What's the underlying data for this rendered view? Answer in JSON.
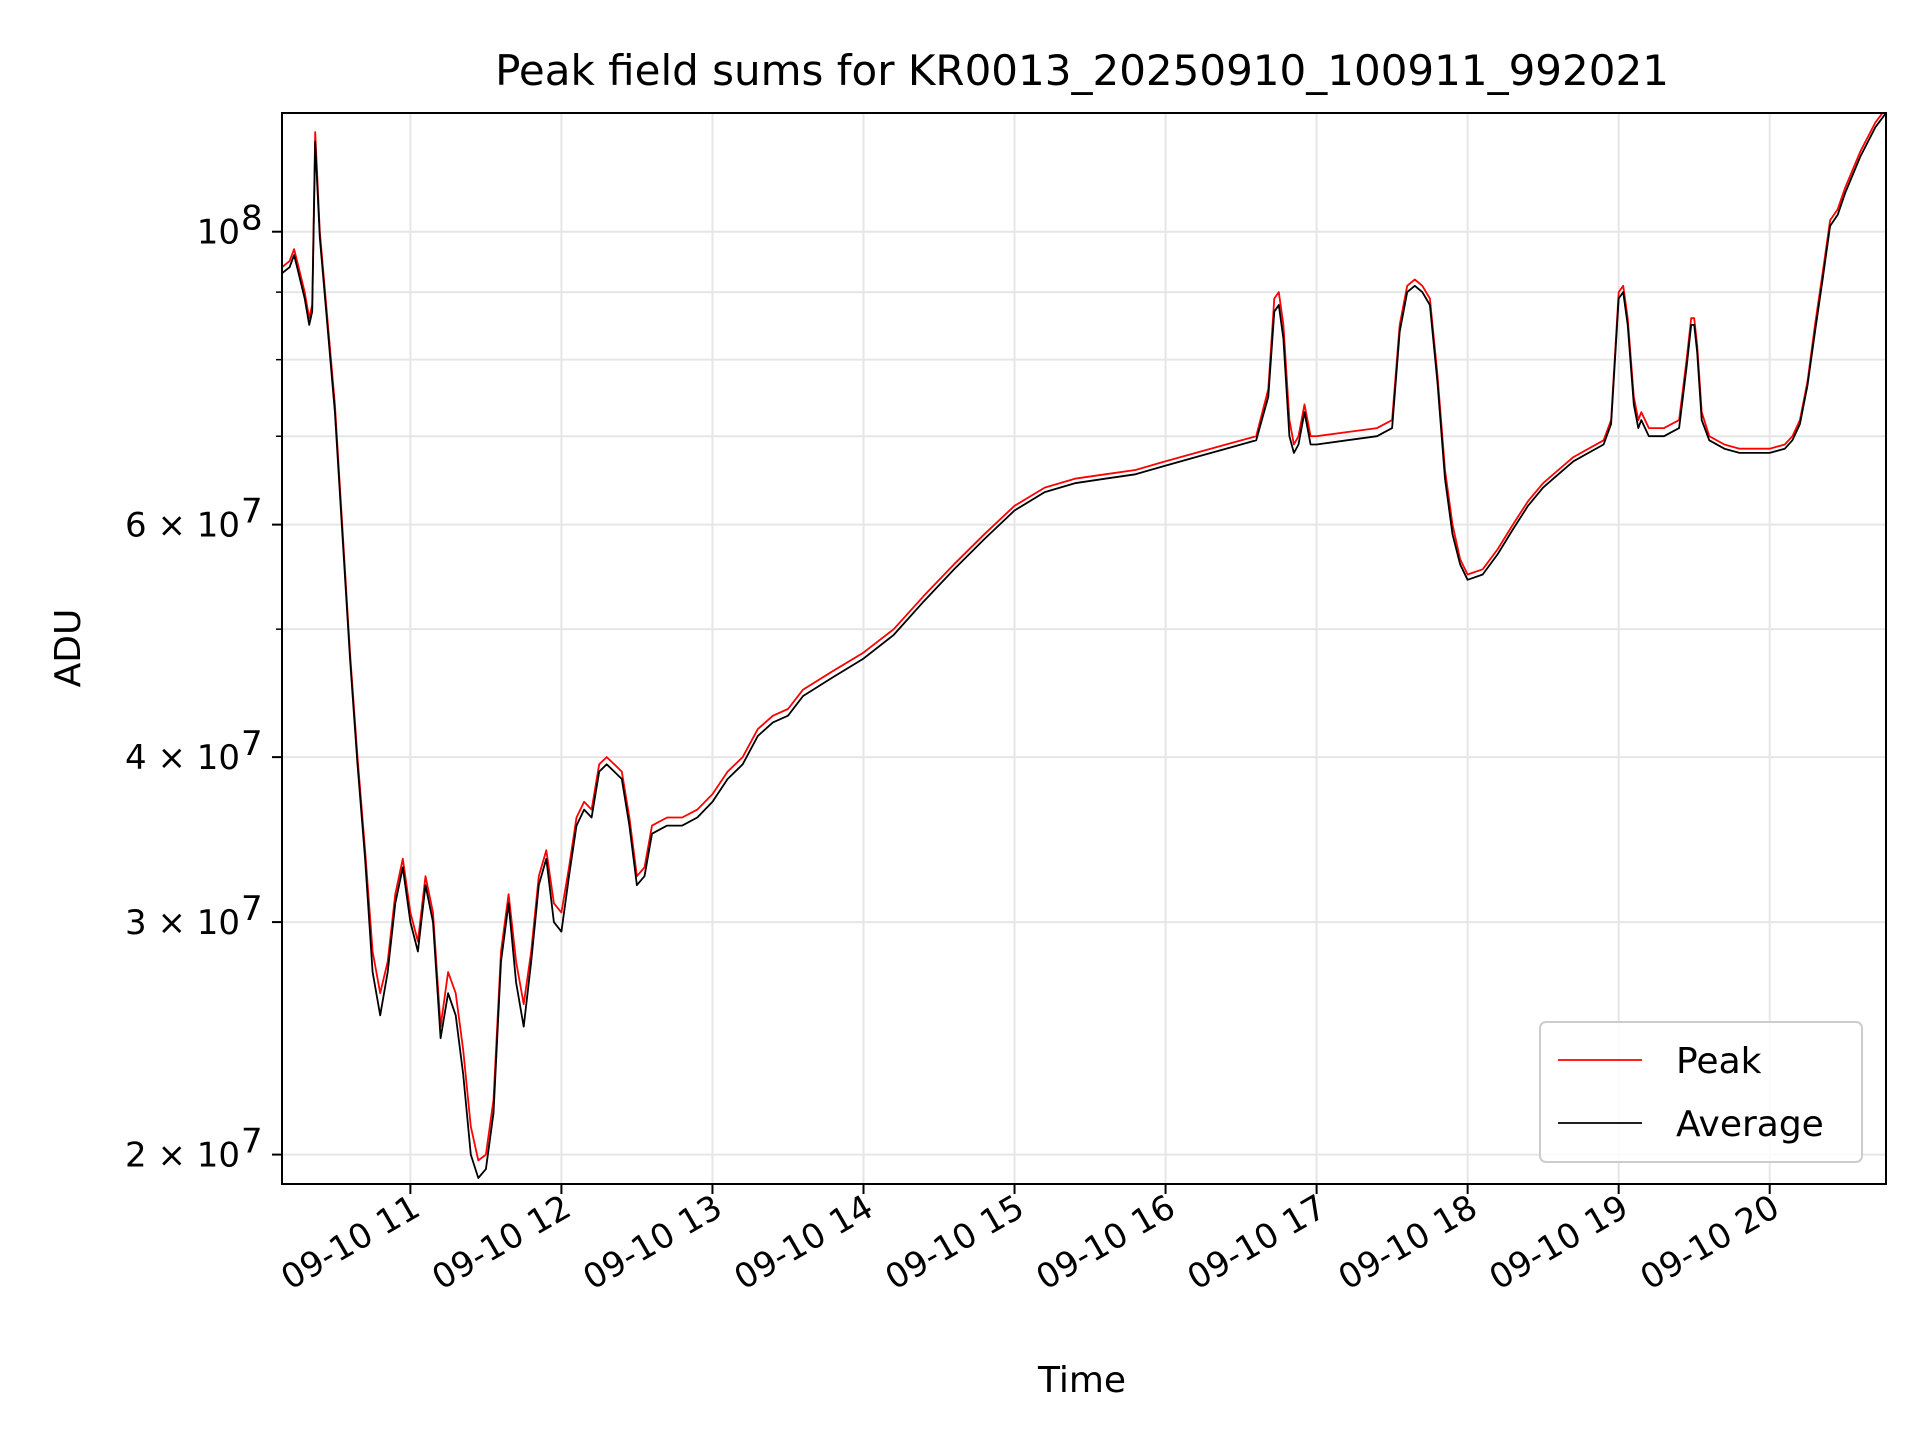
{
  "chart_data": {
    "type": "line",
    "title": "Peak field sums for KR0013_20250910_100911_992021",
    "xlabel": "Time",
    "ylabel": "ADU",
    "yscale": "log",
    "ylim": [
      19000000,
      123000000
    ],
    "xlim": [
      10.15,
      20.77
    ],
    "grid": true,
    "legend_position": "lower-right",
    "x_ticks": [
      11,
      12,
      13,
      14,
      15,
      16,
      17,
      18,
      19,
      20
    ],
    "x_tick_labels": [
      "09-10 11",
      "09-10 12",
      "09-10 13",
      "09-10 14",
      "09-10 15",
      "09-10 16",
      "09-10 17",
      "09-10 18",
      "09-10 19",
      "09-10 20"
    ],
    "y_major_ticks": [
      100000000,
      60000000,
      40000000,
      30000000,
      20000000
    ],
    "y_major_tick_mantissa": [
      "10",
      "6 × 10",
      "4 × 10",
      "3 × 10",
      "2 × 10"
    ],
    "y_major_tick_exponent": [
      "8",
      "7",
      "7",
      "7",
      "7"
    ],
    "y_minor_ticks": [
      90000000,
      80000000,
      70000000,
      50000000
    ],
    "series": [
      {
        "name": "Peak",
        "color": "#ff0000",
        "x": [
          10.15,
          10.2,
          10.23,
          10.25,
          10.3,
          10.33,
          10.35,
          10.37,
          10.4,
          10.5,
          10.6,
          10.65,
          10.7,
          10.75,
          10.8,
          10.85,
          10.9,
          10.95,
          11.0,
          11.05,
          11.1,
          11.15,
          11.2,
          11.25,
          11.3,
          11.35,
          11.4,
          11.45,
          11.5,
          11.55,
          11.6,
          11.65,
          11.7,
          11.75,
          11.8,
          11.85,
          11.9,
          11.95,
          12.0,
          12.05,
          12.1,
          12.15,
          12.2,
          12.25,
          12.3,
          12.35,
          12.4,
          12.45,
          12.5,
          12.55,
          12.6,
          12.7,
          12.8,
          12.9,
          13.0,
          13.1,
          13.2,
          13.3,
          13.4,
          13.5,
          13.6,
          13.8,
          14.0,
          14.2,
          14.4,
          14.6,
          14.8,
          15.0,
          15.2,
          15.4,
          15.6,
          15.8,
          16.0,
          16.2,
          16.4,
          16.6,
          16.68,
          16.72,
          16.75,
          16.78,
          16.82,
          16.85,
          16.88,
          16.92,
          16.96,
          17.0,
          17.2,
          17.4,
          17.5,
          17.55,
          17.6,
          17.65,
          17.7,
          17.75,
          17.8,
          17.85,
          17.9,
          17.95,
          18.0,
          18.1,
          18.2,
          18.3,
          18.4,
          18.5,
          18.6,
          18.7,
          18.8,
          18.9,
          18.95,
          19.0,
          19.03,
          19.06,
          19.1,
          19.13,
          19.15,
          19.2,
          19.3,
          19.4,
          19.45,
          19.48,
          19.5,
          19.52,
          19.55,
          19.6,
          19.7,
          19.8,
          19.9,
          20.0,
          20.1,
          20.15,
          20.2,
          20.25,
          20.3,
          20.35,
          20.4,
          20.45,
          20.5,
          20.6,
          20.7,
          20.77
        ],
        "values": [
          94000000,
          95000000,
          97000000,
          95000000,
          90000000,
          86000000,
          88000000,
          119000000,
          100000000,
          74000000,
          48000000,
          40000000,
          34000000,
          28500000,
          26500000,
          28000000,
          31500000,
          33500000,
          30500000,
          29000000,
          32500000,
          30500000,
          25000000,
          27500000,
          26500000,
          24000000,
          21000000,
          19800000,
          20000000,
          22000000,
          28500000,
          31500000,
          28000000,
          26000000,
          28500000,
          32500000,
          34000000,
          31000000,
          30500000,
          33000000,
          36000000,
          37000000,
          36500000,
          39500000,
          40000000,
          39500000,
          39000000,
          36000000,
          32500000,
          33000000,
          35500000,
          36000000,
          36000000,
          36500000,
          37500000,
          39000000,
          40000000,
          42000000,
          43000000,
          43500000,
          45000000,
          46500000,
          48000000,
          50000000,
          53000000,
          56000000,
          59000000,
          62000000,
          64000000,
          65000000,
          65500000,
          66000000,
          67000000,
          68000000,
          69000000,
          70000000,
          76000000,
          89000000,
          90000000,
          85000000,
          72000000,
          69000000,
          70000000,
          74000000,
          70000000,
          70000000,
          70500000,
          71000000,
          72000000,
          85000000,
          91000000,
          92000000,
          91000000,
          89000000,
          78000000,
          66000000,
          60000000,
          56500000,
          55000000,
          55500000,
          57500000,
          60000000,
          62500000,
          64500000,
          66000000,
          67500000,
          68500000,
          69500000,
          72000000,
          90000000,
          91000000,
          86000000,
          75000000,
          72000000,
          73000000,
          71000000,
          71000000,
          72000000,
          80000000,
          86000000,
          86000000,
          82000000,
          73000000,
          70000000,
          69000000,
          68500000,
          68500000,
          68500000,
          69000000,
          70000000,
          72000000,
          77000000,
          85000000,
          93000000,
          102000000,
          104000000,
          108000000,
          115000000,
          121000000,
          124000000
        ]
      },
      {
        "name": "Average",
        "color": "#000000",
        "x": [
          10.15,
          10.2,
          10.23,
          10.25,
          10.3,
          10.33,
          10.35,
          10.37,
          10.4,
          10.5,
          10.6,
          10.65,
          10.7,
          10.75,
          10.8,
          10.85,
          10.9,
          10.95,
          11.0,
          11.05,
          11.1,
          11.15,
          11.2,
          11.25,
          11.3,
          11.35,
          11.4,
          11.45,
          11.5,
          11.55,
          11.6,
          11.65,
          11.7,
          11.75,
          11.8,
          11.85,
          11.9,
          11.95,
          12.0,
          12.05,
          12.1,
          12.15,
          12.2,
          12.25,
          12.3,
          12.35,
          12.4,
          12.45,
          12.5,
          12.55,
          12.6,
          12.7,
          12.8,
          12.9,
          13.0,
          13.1,
          13.2,
          13.3,
          13.4,
          13.5,
          13.6,
          13.8,
          14.0,
          14.2,
          14.4,
          14.6,
          14.8,
          15.0,
          15.2,
          15.4,
          15.6,
          15.8,
          16.0,
          16.2,
          16.4,
          16.6,
          16.68,
          16.72,
          16.75,
          16.78,
          16.82,
          16.85,
          16.88,
          16.92,
          16.96,
          17.0,
          17.2,
          17.4,
          17.5,
          17.55,
          17.6,
          17.65,
          17.7,
          17.75,
          17.8,
          17.85,
          17.9,
          17.95,
          18.0,
          18.1,
          18.2,
          18.3,
          18.4,
          18.5,
          18.6,
          18.7,
          18.8,
          18.9,
          18.95,
          19.0,
          19.03,
          19.06,
          19.1,
          19.13,
          19.15,
          19.2,
          19.3,
          19.4,
          19.45,
          19.48,
          19.5,
          19.52,
          19.55,
          19.6,
          19.7,
          19.8,
          19.9,
          20.0,
          20.1,
          20.15,
          20.2,
          20.25,
          20.3,
          20.35,
          20.4,
          20.45,
          20.5,
          20.6,
          20.7,
          20.77
        ],
        "values": [
          93000000,
          94000000,
          96000000,
          94000000,
          89000000,
          85000000,
          87000000,
          117000000,
          99000000,
          73000000,
          47500000,
          39500000,
          33500000,
          27500000,
          25500000,
          27500000,
          31000000,
          33000000,
          30000000,
          28500000,
          32000000,
          30000000,
          24500000,
          26500000,
          25500000,
          23000000,
          20000000,
          19200000,
          19500000,
          21500000,
          28000000,
          31000000,
          27000000,
          25000000,
          28000000,
          32000000,
          33500000,
          30000000,
          29500000,
          32500000,
          35500000,
          36500000,
          36000000,
          39000000,
          39500000,
          39000000,
          38500000,
          35500000,
          32000000,
          32500000,
          35000000,
          35500000,
          35500000,
          36000000,
          37000000,
          38500000,
          39500000,
          41500000,
          42500000,
          43000000,
          44500000,
          46000000,
          47500000,
          49500000,
          52500000,
          55500000,
          58500000,
          61500000,
          63500000,
          64500000,
          65000000,
          65500000,
          66500000,
          67500000,
          68500000,
          69500000,
          75000000,
          87000000,
          88000000,
          83000000,
          70000000,
          68000000,
          69000000,
          73000000,
          69000000,
          69000000,
          69500000,
          70000000,
          71000000,
          84000000,
          90000000,
          91000000,
          90000000,
          88000000,
          77000000,
          65000000,
          59000000,
          56000000,
          54500000,
          55000000,
          57000000,
          59500000,
          62000000,
          64000000,
          65500000,
          67000000,
          68000000,
          69000000,
          71500000,
          89000000,
          90000000,
          85000000,
          74000000,
          71000000,
          72000000,
          70000000,
          70000000,
          71000000,
          79000000,
          85000000,
          85000000,
          81000000,
          72000000,
          69500000,
          68500000,
          68000000,
          68000000,
          68000000,
          68500000,
          69500000,
          71500000,
          76500000,
          84000000,
          92000000,
          101000000,
          103000000,
          107000000,
          114000000,
          120000000,
          123000000
        ]
      }
    ]
  }
}
